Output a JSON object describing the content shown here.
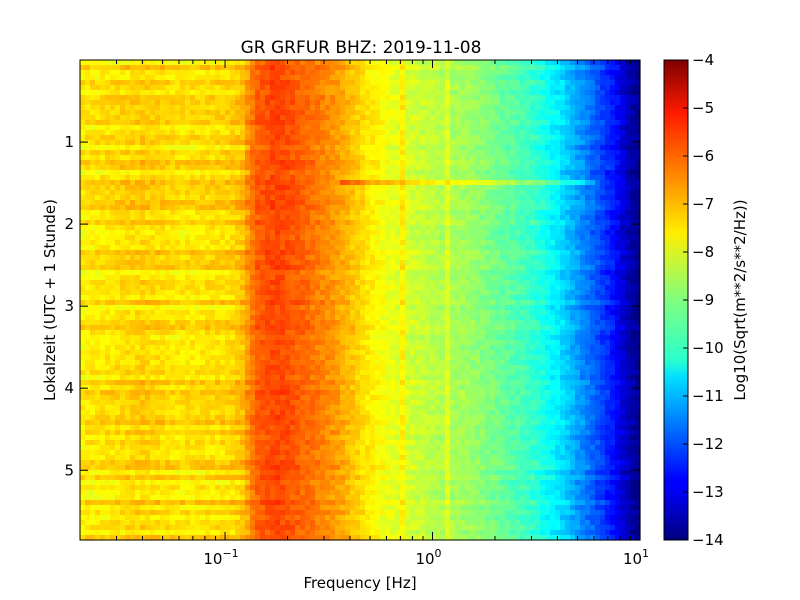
{
  "chart_data": {
    "type": "heatmap",
    "title": "GR GRFUR BHZ: 2019-11-08",
    "xlabel": "Frequency [Hz]",
    "ylabel": "Lokalzeit (UTC + 1 Stunde)",
    "colorbar_label": "Log10(Sqrt(m**2/s**2/Hz))",
    "x_scale": "log",
    "xlim": [
      0.02,
      10
    ],
    "ylim": [
      5.85,
      0.0
    ],
    "clim": [
      -14,
      -4
    ],
    "colormap": "jet",
    "x_ticks": [
      {
        "value": 0.1,
        "base": "10",
        "exp": "−1"
      },
      {
        "value": 1,
        "base": "10",
        "exp": "0"
      },
      {
        "value": 10,
        "base": "10",
        "exp": "1"
      }
    ],
    "y_ticks": [
      {
        "value": 1,
        "label": "1"
      },
      {
        "value": 2,
        "label": "2"
      },
      {
        "value": 3,
        "label": "3"
      },
      {
        "value": 4,
        "label": "4"
      },
      {
        "value": 5,
        "label": "5"
      }
    ],
    "colorbar_ticks": [
      {
        "value": -4,
        "label": "−4"
      },
      {
        "value": -5,
        "label": "−5"
      },
      {
        "value": -6,
        "label": "−6"
      },
      {
        "value": -7,
        "label": "−7"
      },
      {
        "value": -8,
        "label": "−8"
      },
      {
        "value": -9,
        "label": "−9"
      },
      {
        "value": -10,
        "label": "−10"
      },
      {
        "value": -11,
        "label": "−11"
      },
      {
        "value": -12,
        "label": "−12"
      },
      {
        "value": -13,
        "label": "−13"
      },
      {
        "value": -14,
        "label": "−14"
      }
    ],
    "spectrum_profile": [
      {
        "f": 0.02,
        "v": -7.6
      },
      {
        "f": 0.04,
        "v": -7.3
      },
      {
        "f": 0.06,
        "v": -7.5
      },
      {
        "f": 0.1,
        "v": -7.4
      },
      {
        "f": 0.12,
        "v": -7.2
      },
      {
        "f": 0.14,
        "v": -6.2
      },
      {
        "f": 0.18,
        "v": -5.9
      },
      {
        "f": 0.25,
        "v": -6.3
      },
      {
        "f": 0.35,
        "v": -6.8
      },
      {
        "f": 0.5,
        "v": -7.6
      },
      {
        "f": 0.7,
        "v": -8.1
      },
      {
        "f": 1.0,
        "v": -8.4
      },
      {
        "f": 1.5,
        "v": -8.7
      },
      {
        "f": 2.0,
        "v": -9.1
      },
      {
        "f": 3.0,
        "v": -9.7
      },
      {
        "f": 4.0,
        "v": -10.4
      },
      {
        "f": 5.0,
        "v": -11.2
      },
      {
        "f": 6.0,
        "v": -11.8
      },
      {
        "f": 7.5,
        "v": -12.6
      },
      {
        "f": 8.5,
        "v": -13.3
      },
      {
        "f": 10.0,
        "v": -14.0
      }
    ],
    "features": [
      {
        "kind": "horizontal_streak",
        "time": 1.5,
        "f_from": 0.35,
        "f_to": 6.0,
        "delta": 0.7
      },
      {
        "kind": "vertical_line",
        "f": 0.72,
        "delta": 0.5
      },
      {
        "kind": "vertical_line",
        "f": 1.15,
        "delta": 0.5
      }
    ]
  }
}
